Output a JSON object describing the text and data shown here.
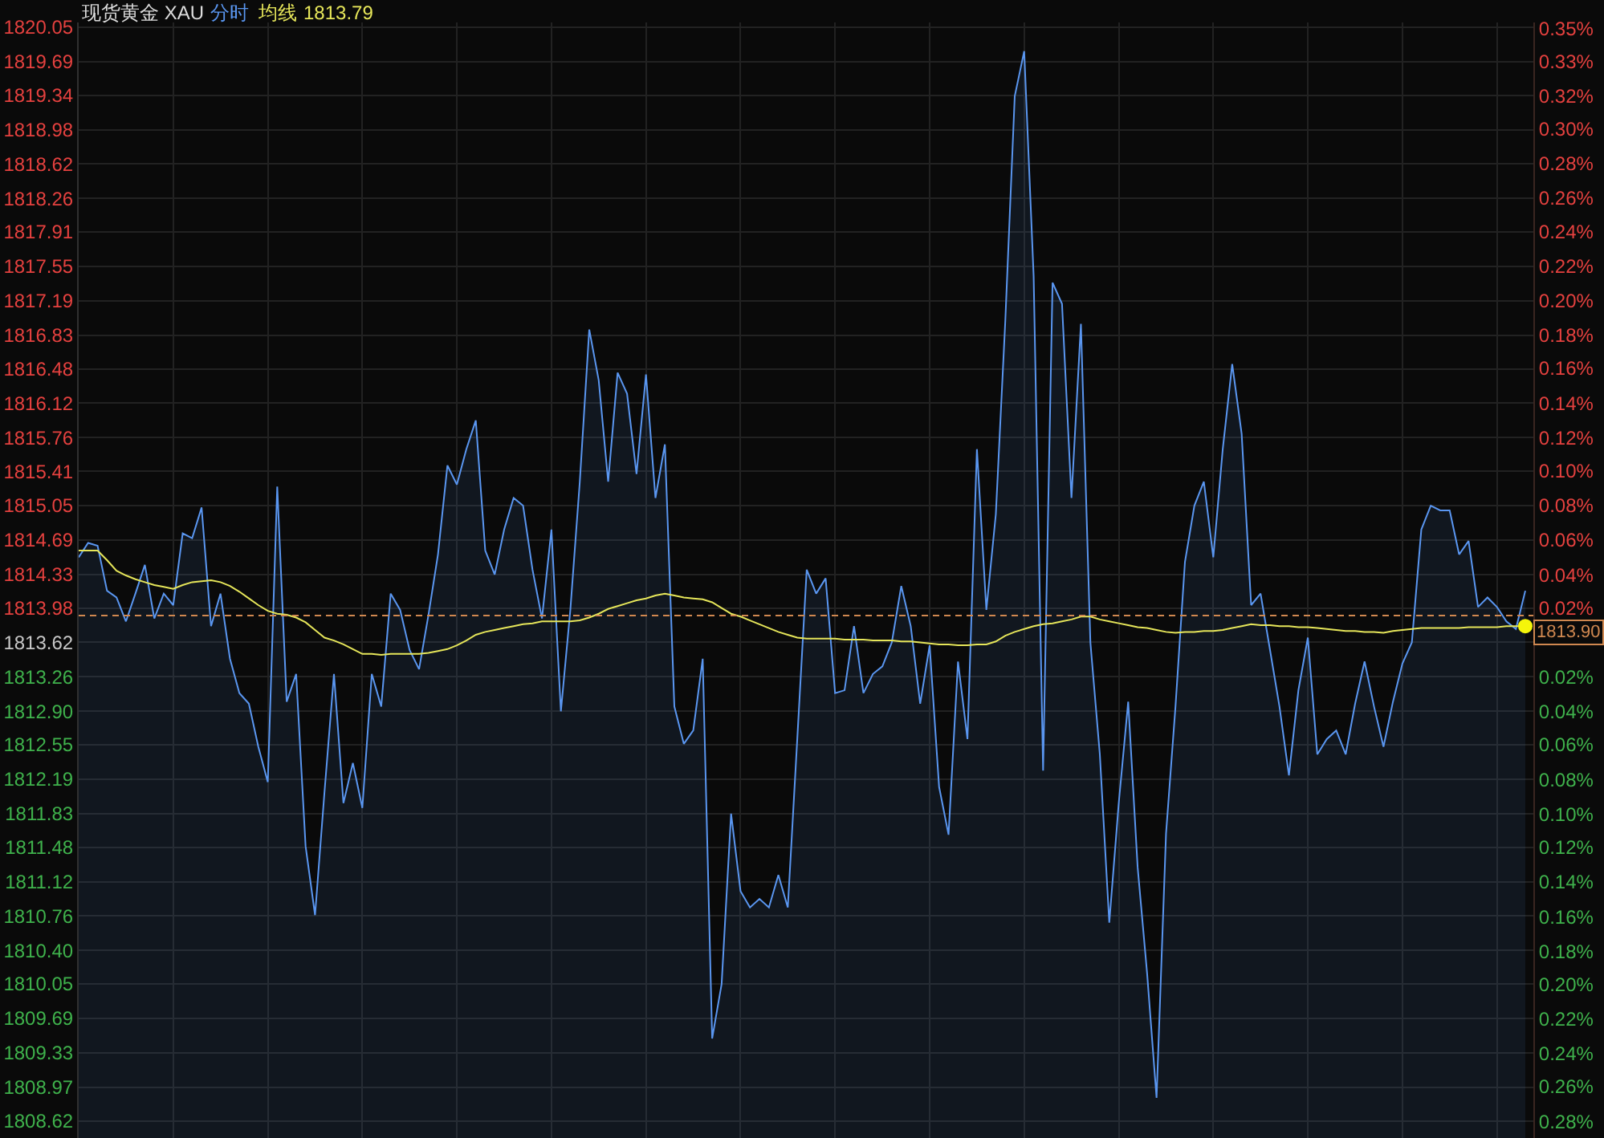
{
  "chart_data": {
    "type": "area",
    "title": "现货黄金 XAU",
    "categories": [
      null,
      null,
      null,
      null,
      null,
      null,
      null,
      null,
      null,
      null,
      null,
      null,
      null,
      null,
      null,
      null,
      null,
      null,
      null,
      null,
      null,
      null,
      null,
      null,
      null,
      null,
      null,
      null,
      null,
      null,
      null,
      null,
      null,
      null,
      null,
      null,
      null,
      null,
      null,
      null,
      null,
      null,
      null,
      null,
      null,
      null,
      null,
      null,
      null,
      null,
      null,
      null,
      null,
      null,
      null,
      null,
      null,
      null,
      null,
      null,
      null,
      null,
      null,
      null,
      null,
      null,
      null,
      null,
      null,
      null,
      null,
      null,
      null,
      null,
      null,
      null,
      null,
      null,
      null,
      null,
      null,
      null,
      null,
      null,
      null,
      null,
      null,
      null,
      null,
      null,
      null,
      null,
      null,
      null,
      null,
      null,
      null,
      null,
      null,
      null,
      null,
      null,
      null,
      null,
      null,
      null,
      null,
      null,
      null,
      null,
      null,
      null,
      null,
      null,
      null,
      null,
      null,
      null,
      null,
      null,
      null,
      null,
      null,
      null,
      null,
      null,
      null,
      null,
      null,
      null,
      null,
      null,
      null,
      null,
      null,
      null,
      null,
      null,
      null,
      null,
      null,
      null,
      null,
      null,
      null,
      null,
      null,
      null,
      null,
      null,
      null,
      null,
      null,
      null
    ],
    "series": [
      {
        "name": "分时",
        "color": "#5a96f0",
        "values": [
          1814.51,
          1814.66,
          1814.63,
          1814.16,
          1814.09,
          1813.84,
          1814.13,
          1814.43,
          1813.87,
          1814.13,
          1814.01,
          1814.76,
          1814.71,
          1815.03,
          1813.79,
          1814.13,
          1813.45,
          1813.09,
          1812.98,
          1812.53,
          1812.16,
          1815.25,
          1813.0,
          1813.29,
          1811.49,
          1810.77,
          1812.06,
          1813.29,
          1811.94,
          1812.36,
          1811.89,
          1813.29,
          1812.95,
          1814.13,
          1813.96,
          1813.54,
          1813.34,
          1813.91,
          1814.54,
          1815.47,
          1815.27,
          1815.64,
          1815.94,
          1814.58,
          1814.33,
          1814.8,
          1815.13,
          1815.05,
          1814.38,
          1813.87,
          1814.8,
          1812.9,
          1813.96,
          1815.3,
          1816.89,
          1816.36,
          1815.3,
          1816.44,
          1816.22,
          1815.38,
          1816.42,
          1815.13,
          1815.69,
          1812.95,
          1812.56,
          1812.7,
          1813.45,
          1809.48,
          1810.05,
          1811.83,
          1811.02,
          1810.85,
          1810.94,
          1810.85,
          1811.19,
          1810.85,
          1812.61,
          1814.38,
          1814.13,
          1814.29,
          1813.09,
          1813.12,
          1813.79,
          1813.09,
          1813.29,
          1813.37,
          1813.62,
          1814.21,
          1813.79,
          1812.98,
          1813.59,
          1812.11,
          1811.61,
          1813.42,
          1812.61,
          1815.64,
          1813.96,
          1814.96,
          1816.98,
          1819.33,
          1819.8,
          1817.45,
          1812.28,
          1817.38,
          1817.16,
          1815.13,
          1816.95,
          1813.62,
          1812.45,
          1810.69,
          1811.94,
          1813.0,
          1811.27,
          1810.16,
          1808.86,
          1811.62,
          1812.95,
          1814.46,
          1815.05,
          1815.3,
          1814.51,
          1815.64,
          1816.53,
          1815.8,
          1814.01,
          1814.13,
          1813.54,
          1812.95,
          1812.23,
          1813.12,
          1813.67,
          1812.45,
          1812.61,
          1812.7,
          1812.45,
          1812.98,
          1813.42,
          1812.95,
          1812.53,
          1813.0,
          1813.4,
          1813.62,
          1814.8,
          1815.05,
          1815.0,
          1815.0,
          1814.54,
          1814.68,
          1813.99,
          1814.09,
          1813.99,
          1813.84,
          1813.76,
          1814.16
        ]
      },
      {
        "name": "均线",
        "type": "line",
        "color": "#e6e65a",
        "values": [
          1814.58,
          1814.58,
          1814.58,
          1814.48,
          1814.37,
          1814.32,
          1814.28,
          1814.25,
          1814.22,
          1814.2,
          1814.18,
          1814.22,
          1814.25,
          1814.26,
          1814.27,
          1814.25,
          1814.21,
          1814.15,
          1814.08,
          1814.01,
          1813.95,
          1813.92,
          1813.91,
          1813.88,
          1813.83,
          1813.75,
          1813.67,
          1813.64,
          1813.6,
          1813.55,
          1813.5,
          1813.5,
          1813.49,
          1813.5,
          1813.5,
          1813.5,
          1813.5,
          1813.51,
          1813.53,
          1813.55,
          1813.59,
          1813.64,
          1813.7,
          1813.73,
          1813.75,
          1813.77,
          1813.79,
          1813.81,
          1813.82,
          1813.84,
          1813.84,
          1813.84,
          1813.84,
          1813.85,
          1813.88,
          1813.92,
          1813.97,
          1814.0,
          1814.03,
          1814.06,
          1814.08,
          1814.11,
          1814.13,
          1814.11,
          1814.09,
          1814.08,
          1814.07,
          1814.04,
          1813.98,
          1813.92,
          1813.89,
          1813.85,
          1813.81,
          1813.77,
          1813.73,
          1813.7,
          1813.67,
          1813.66,
          1813.66,
          1813.66,
          1813.66,
          1813.65,
          1813.65,
          1813.65,
          1813.64,
          1813.64,
          1813.64,
          1813.63,
          1813.63,
          1813.62,
          1813.61,
          1813.6,
          1813.6,
          1813.59,
          1813.59,
          1813.6,
          1813.6,
          1813.63,
          1813.69,
          1813.73,
          1813.76,
          1813.79,
          1813.81,
          1813.82,
          1813.84,
          1813.86,
          1813.89,
          1813.89,
          1813.86,
          1813.84,
          1813.82,
          1813.8,
          1813.78,
          1813.77,
          1813.75,
          1813.73,
          1813.72,
          1813.73,
          1813.73,
          1813.74,
          1813.74,
          1813.75,
          1813.77,
          1813.79,
          1813.81,
          1813.8,
          1813.8,
          1813.79,
          1813.79,
          1813.78,
          1813.78,
          1813.77,
          1813.76,
          1813.75,
          1813.74,
          1813.74,
          1813.73,
          1813.73,
          1813.72,
          1813.74,
          1813.75,
          1813.76,
          1813.77,
          1813.77,
          1813.77,
          1813.77,
          1813.77,
          1813.78,
          1813.78,
          1813.78,
          1813.78,
          1813.79,
          1813.79,
          1813.79
        ]
      },
      {
        "type": "scatter",
        "marker": "circle",
        "color": "#f5f50a",
        "values": [
          null,
          null,
          null,
          null,
          null,
          null,
          null,
          null,
          null,
          null,
          null,
          null,
          null,
          null,
          null,
          null,
          null,
          null,
          null,
          null,
          null,
          null,
          null,
          null,
          null,
          null,
          null,
          null,
          null,
          null,
          null,
          null,
          null,
          null,
          null,
          null,
          null,
          null,
          null,
          null,
          null,
          null,
          null,
          null,
          null,
          null,
          null,
          null,
          null,
          null,
          null,
          null,
          null,
          null,
          null,
          null,
          null,
          null,
          null,
          null,
          null,
          null,
          null,
          null,
          null,
          null,
          null,
          null,
          null,
          null,
          null,
          null,
          null,
          null,
          null,
          null,
          null,
          null,
          null,
          null,
          null,
          null,
          null,
          null,
          null,
          null,
          null,
          null,
          null,
          null,
          null,
          null,
          null,
          null,
          null,
          null,
          null,
          null,
          null,
          null,
          null,
          null,
          null,
          null,
          null,
          null,
          null,
          null,
          null,
          null,
          null,
          null,
          null,
          null,
          null,
          null,
          null,
          null,
          null,
          null,
          null,
          null,
          null,
          null,
          null,
          null,
          null,
          null,
          null,
          null,
          null,
          null,
          null,
          null,
          null,
          null,
          null,
          null,
          null,
          null,
          null,
          null,
          null,
          null,
          null,
          null,
          null,
          null,
          null,
          null,
          null,
          null,
          null,
          1813.79
        ]
      }
    ],
    "annotations": [
      "1813.79"
    ],
    "ylim": [
      1808.44,
      1820.1
    ],
    "yticks": [
      1820.05,
      1819.69,
      1819.34,
      1818.98,
      1818.62,
      1818.26,
      1817.91,
      1817.55,
      1817.19,
      1816.83,
      1816.48,
      1816.12,
      1815.76,
      1815.41,
      1815.05,
      1814.69,
      1814.33,
      1813.98,
      1813.62,
      1813.26,
      {
        "value": 1812.9,
        "label": "1812.90"
      },
      1812.55,
      1812.19,
      1811.83,
      1811.48,
      1811.12,
      1810.76,
      {
        "value": 1810.4,
        "label": "1810.40"
      },
      1810.05,
      1809.69,
      1809.33,
      1808.97,
      1808.62
    ],
    "y2lim": [
      -0.2856,
      0.3573
    ],
    "y2ticks": [
      {
        "value": 0.354,
        "label": "0.35%"
      },
      {
        "value": 0.335,
        "label": "0.33%"
      },
      {
        "value": 0.315,
        "label": "0.32%"
      },
      {
        "value": 0.296,
        "label": "0.30%"
      },
      {
        "value": 0.276,
        "label": "0.28%"
      },
      {
        "value": 0.256,
        "label": "0.26%"
      },
      {
        "value": 0.237,
        "label": "0.24%"
      },
      {
        "value": 0.217,
        "label": "0.22%"
      },
      {
        "value": 0.197,
        "label": "0.20%"
      },
      {
        "value": 0.177,
        "label": "0.18%"
      },
      {
        "value": 0.158,
        "label": "0.16%"
      },
      {
        "value": 0.138,
        "label": "0.14%"
      },
      {
        "value": 0.118,
        "label": "0.12%"
      },
      {
        "value": 0.099,
        "label": "0.10%"
      },
      {
        "value": 0.079,
        "label": "0.08%"
      },
      {
        "value": 0.059,
        "label": "0.06%"
      },
      {
        "value": 0.039,
        "label": "0.04%"
      },
      {
        "value": 0.02,
        "label": "0.02%"
      },
      {
        "value": -0.02,
        "label": "0.02%"
      },
      {
        "value": -0.04,
        "label": "0.04%"
      },
      {
        "value": -0.059,
        "label": "0.06%"
      },
      {
        "value": -0.079,
        "label": "0.08%"
      },
      {
        "value": -0.099,
        "label": "0.10%"
      },
      {
        "value": -0.118,
        "label": "0.12%"
      },
      {
        "value": -0.138,
        "label": "0.14%"
      },
      {
        "value": -0.158,
        "label": "0.16%"
      },
      {
        "value": -0.178,
        "label": "0.18%"
      },
      {
        "value": -0.197,
        "label": "0.20%"
      },
      {
        "value": -0.217,
        "label": "0.22%"
      },
      {
        "value": -0.237,
        "label": "0.24%"
      },
      {
        "value": -0.256,
        "label": "0.26%"
      },
      {
        "value": -0.276,
        "label": "0.28%"
      }
    ],
    "ref_lines": [
      {
        "axis": "y",
        "value": 1813.9,
        "label": "1813.90",
        "color": "#d08850",
        "line_style": "dashed"
      }
    ],
    "grid": true,
    "legend": "top"
  }
}
